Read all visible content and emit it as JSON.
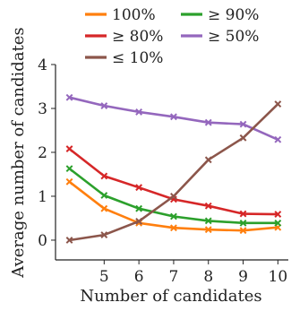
{
  "chart_data": {
    "type": "line",
    "xlabel": "Number of candidates",
    "ylabel": "Average number of candidates",
    "x": [
      4,
      5,
      6,
      7,
      8,
      9,
      10
    ],
    "xticks": [
      "5",
      "6",
      "7",
      "8",
      "9",
      "10"
    ],
    "xlim": [
      3.6,
      10.3
    ],
    "ylim": [
      -0.45,
      4.0
    ],
    "yticks": [
      "0",
      "1",
      "2",
      "3",
      "4"
    ],
    "grid": false,
    "legend_position": "top",
    "series": [
      {
        "name": "100%",
        "color": "#ff7f0e",
        "values": [
          1.33,
          0.72,
          0.39,
          0.28,
          0.24,
          0.22,
          0.29
        ]
      },
      {
        "name": "≥ 90%",
        "color": "#2ca02c",
        "values": [
          1.63,
          1.02,
          0.72,
          0.54,
          0.44,
          0.39,
          0.39
        ]
      },
      {
        "name": "≥ 80%",
        "color": "#d62728",
        "values": [
          2.08,
          1.46,
          1.2,
          0.93,
          0.78,
          0.6,
          0.59
        ]
      },
      {
        "name": "≥ 50%",
        "color": "#9467bd",
        "values": [
          3.25,
          3.06,
          2.92,
          2.81,
          2.68,
          2.64,
          2.29
        ]
      },
      {
        "name": "≤ 10%",
        "color": "#8c564b",
        "values": [
          0.0,
          0.12,
          0.43,
          1.0,
          1.83,
          2.33,
          3.1
        ]
      }
    ]
  }
}
